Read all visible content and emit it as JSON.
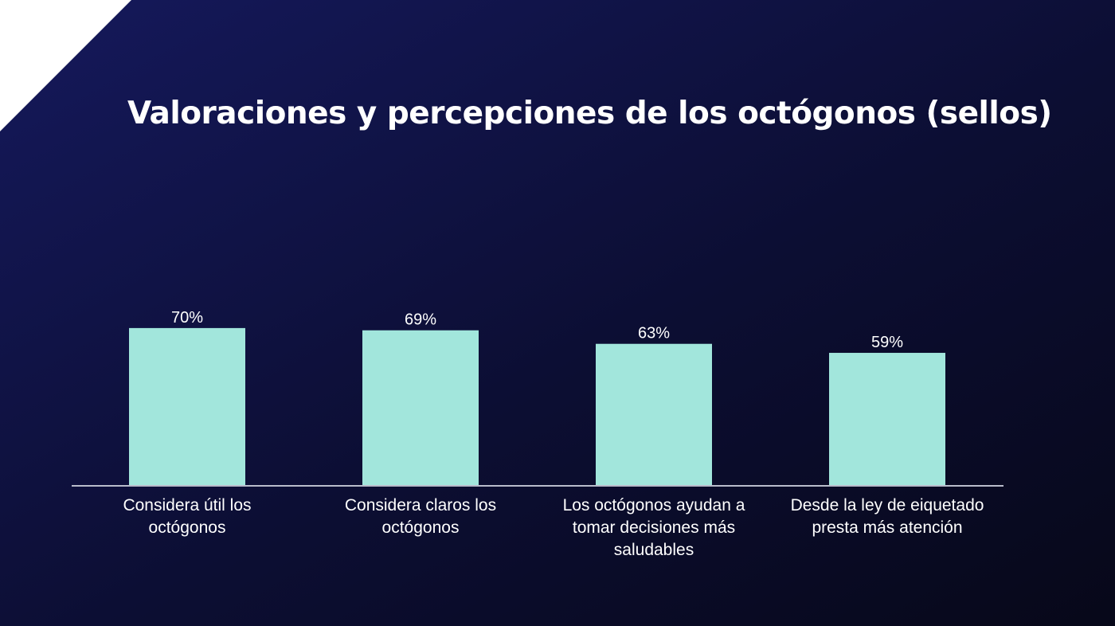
{
  "slide": {
    "title": "Valoraciones y percepciones de los octógonos (sellos)",
    "background_colors": [
      "#15195c",
      "#0c0e33",
      "#070819"
    ],
    "corner_color": "#ffffff"
  },
  "chart_data": {
    "type": "bar",
    "title": "Valoraciones y percepciones de los octógonos (sellos)",
    "xlabel": "",
    "ylabel": "",
    "categories": [
      [
        "Considera útil los",
        "octógonos"
      ],
      [
        "Considera claros los",
        "octógonos"
      ],
      [
        "Los octógonos ayudan a",
        "tomar decisiones más",
        "saludables"
      ],
      [
        "Desde la ley de eiquetado",
        "presta más atención"
      ]
    ],
    "values": [
      70,
      69,
      63,
      59
    ],
    "value_labels": [
      "70%",
      "69%",
      "63%",
      "59%"
    ],
    "unit": "%",
    "ylim": [
      0,
      100
    ],
    "grid": false,
    "legend": "none",
    "bar_color": "#a2e6dc",
    "axis_color": "#b9bccb",
    "label_color": "#ffffff"
  }
}
